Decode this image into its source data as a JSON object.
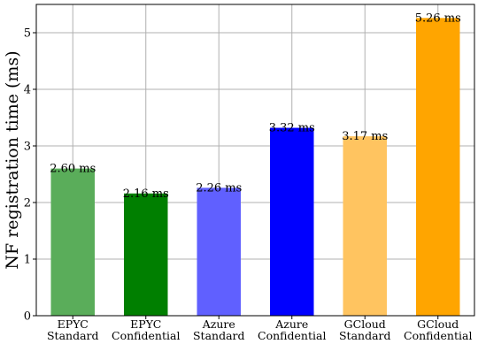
{
  "chart_data": {
    "type": "bar",
    "categories": [
      [
        "EPYC",
        "Standard"
      ],
      [
        "EPYC",
        "Confidential"
      ],
      [
        "Azure",
        "Standard"
      ],
      [
        "Azure",
        "Confidential"
      ],
      [
        "GCloud",
        "Standard"
      ],
      [
        "GCloud",
        "Confidential"
      ]
    ],
    "values": [
      2.6,
      2.16,
      2.26,
      3.32,
      3.17,
      5.26
    ],
    "data_labels": [
      "2.60 ms",
      "2.16 ms",
      "2.26 ms",
      "3.32 ms",
      "3.17 ms",
      "5.26 ms"
    ],
    "colors": [
      "#5aad5a",
      "#007f00",
      "#6060ff",
      "#0000ff",
      "#ffc460",
      "#ffa500"
    ],
    "title": "",
    "xlabel": "",
    "ylabel": "NF registration time (ms)",
    "ylim": [
      0,
      5.5
    ],
    "yticks": [
      0,
      1,
      2,
      3,
      4,
      5
    ],
    "grid": true,
    "legend": "none"
  }
}
